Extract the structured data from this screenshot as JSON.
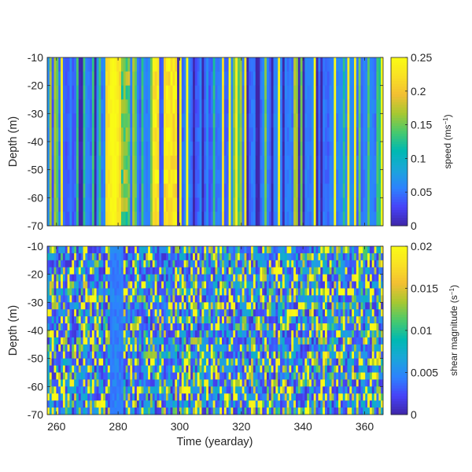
{
  "figure": {
    "xlabel": "Time (yearday)"
  },
  "colormap": [
    "#3e26a8",
    "#4743f8",
    "#2d82fe",
    "#1aa6d9",
    "#00b9b2",
    "#48c96d",
    "#a7c831",
    "#f2bf33",
    "#f9e124",
    "#f9fb15"
  ],
  "chart_data": [
    {
      "type": "heatmap",
      "name": "speed",
      "xlabel": "",
      "ylabel": "Depth (m)",
      "xlim": [
        257,
        366
      ],
      "ylim": [
        -70,
        -10
      ],
      "xticks": [
        260,
        280,
        300,
        320,
        340,
        360
      ],
      "yticks": [
        -10,
        -20,
        -30,
        -40,
        -50,
        -60,
        -70
      ],
      "xtick_labels": [
        "",
        "",
        "",
        "",
        "",
        ""
      ],
      "ytick_labels": [
        "-10",
        "-20",
        "-30",
        "-40",
        "-50",
        "-60",
        "-70"
      ],
      "colorbar": {
        "label_main": "speed (ms",
        "label_sup": "−1",
        "label_end": ")",
        "clim": [
          0,
          0.25
        ],
        "ticks": [
          0,
          0.05,
          0.1,
          0.15,
          0.2,
          0.25
        ],
        "tick_labels": [
          "0",
          "0.05",
          "0.1",
          "0.15",
          "0.2",
          "0.25"
        ]
      },
      "features": {
        "high_speed_bands_yearday": [
          [
            276,
            281
          ],
          [
            291,
            294
          ],
          [
            294.5,
            299
          ],
          [
            337,
            340
          ],
          [
            355,
            357
          ]
        ],
        "background_level": 0.05
      }
    },
    {
      "type": "heatmap",
      "name": "shear magnitude",
      "xlabel": "Time (yearday)",
      "ylabel": "Depth (m)",
      "xlim": [
        257,
        366
      ],
      "ylim": [
        -70,
        -10
      ],
      "xticks": [
        260,
        280,
        300,
        320,
        340,
        360
      ],
      "yticks": [
        -10,
        -20,
        -30,
        -40,
        -50,
        -60,
        -70
      ],
      "xtick_labels": [
        "260",
        "280",
        "300",
        "320",
        "340",
        "360"
      ],
      "ytick_labels": [
        "-10",
        "-20",
        "-30",
        "-40",
        "-50",
        "-60",
        "-70"
      ],
      "colorbar": {
        "label_main": "shear magnitude (s",
        "label_sup": "−1",
        "label_end": ")",
        "clim": [
          0,
          0.02
        ],
        "ticks": [
          0,
          0.005,
          0.01,
          0.015,
          0.02
        ],
        "tick_labels": [
          "0",
          "0.005",
          "0.01",
          "0.015",
          "0.02"
        ]
      },
      "features": {
        "low_shear_band_yearday": [
          277,
          282
        ],
        "background_level": 0.006
      }
    }
  ]
}
